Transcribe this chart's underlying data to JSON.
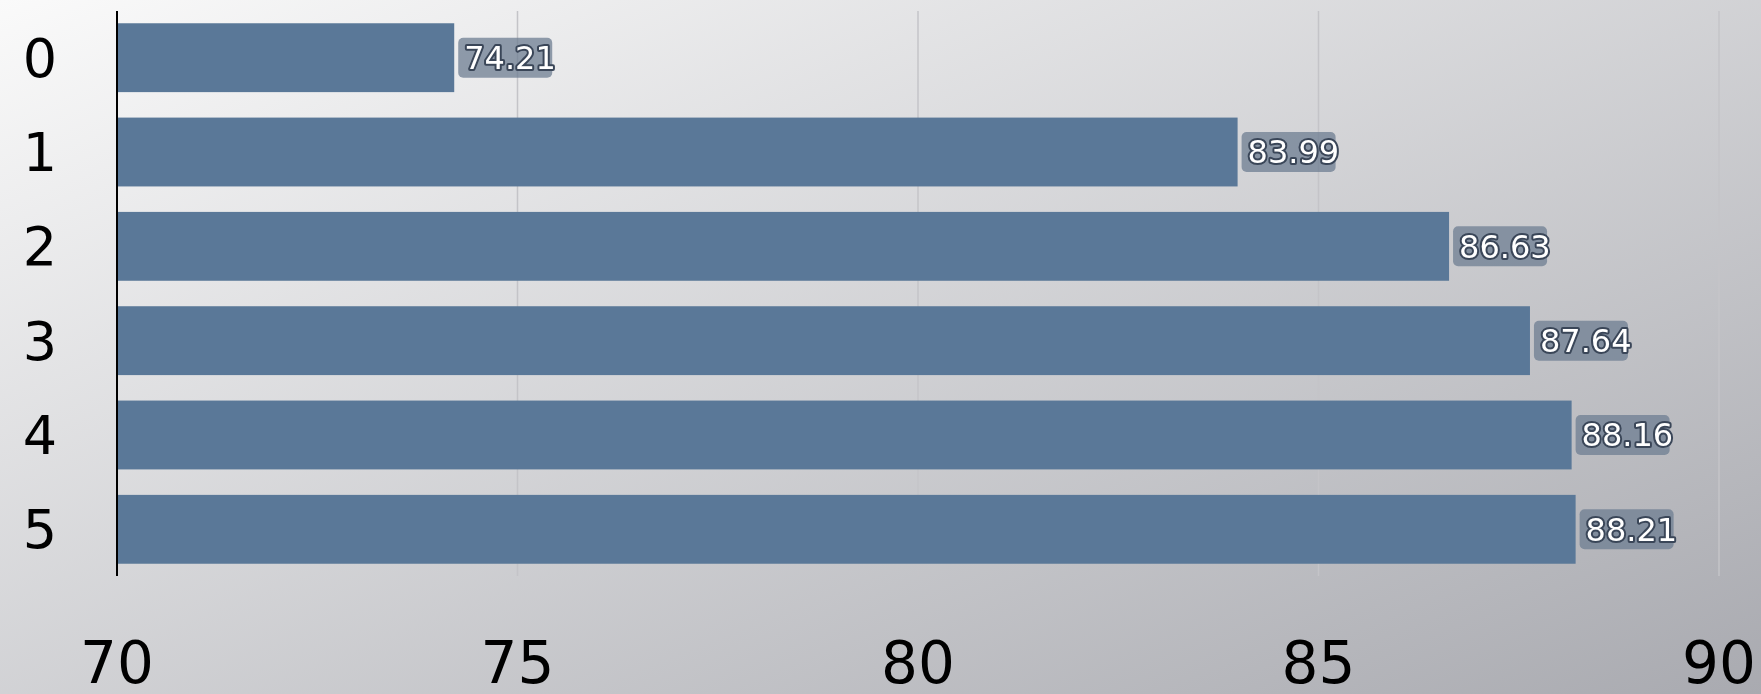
{
  "chart_data": {
    "type": "bar",
    "orientation": "horizontal",
    "categories": [
      "0",
      "1",
      "2",
      "3",
      "4",
      "5"
    ],
    "values": [
      74.21,
      83.99,
      86.63,
      87.64,
      88.16,
      88.21
    ],
    "color": "#5a7898",
    "xlim": [
      70,
      90
    ],
    "xticks": [
      70,
      75,
      80,
      85,
      90
    ],
    "grid": "x",
    "data_labels": true
  }
}
